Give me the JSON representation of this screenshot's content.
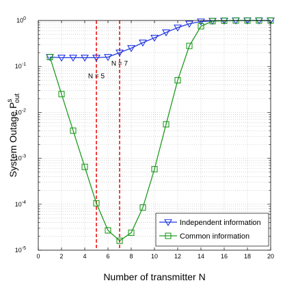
{
  "chart_data": {
    "type": "line",
    "xlabel": "Number of transmitter N",
    "ylabel": "System Outage P",
    "ylabel_sup": "s",
    "ylabel_sub": "out",
    "xlim": [
      0,
      20
    ],
    "ylim": [
      1e-05,
      1
    ],
    "yscale": "log",
    "grid": true,
    "legend_position": "bottom-right",
    "x_ticks": [
      "0",
      "2",
      "4",
      "6",
      "8",
      "10",
      "12",
      "14",
      "16",
      "18",
      "20"
    ],
    "y_ticks": [
      {
        "base": "10",
        "exp": "0"
      },
      {
        "base": "10",
        "exp": "-1"
      },
      {
        "base": "10",
        "exp": "-2"
      },
      {
        "base": "10",
        "exp": "-3"
      },
      {
        "base": "10",
        "exp": "-4"
      },
      {
        "base": "10",
        "exp": "-5"
      }
    ],
    "series": [
      {
        "name": "Independent information",
        "color": "#1f35e0",
        "marker": "triangle-down",
        "x": [
          1,
          2,
          3,
          4,
          5,
          6,
          7,
          8,
          9,
          10,
          11,
          12,
          13,
          14,
          15,
          16,
          17,
          18,
          19,
          20
        ],
        "y": [
          0.16,
          0.155,
          0.155,
          0.155,
          0.155,
          0.16,
          0.2,
          0.25,
          0.33,
          0.42,
          0.55,
          0.7,
          0.85,
          0.95,
          0.98,
          0.99,
          1,
          1,
          1,
          1
        ]
      },
      {
        "name": "Common information",
        "color": "#1e9a1e",
        "marker": "square",
        "x": [
          1,
          2,
          3,
          4,
          5,
          6,
          7,
          8,
          9,
          10,
          11,
          12,
          13,
          14,
          15,
          16,
          17,
          18,
          19,
          20
        ],
        "y": [
          0.16,
          0.025,
          0.004,
          0.00065,
          0.000105,
          2.7e-05,
          1.6e-05,
          2.4e-05,
          8.5e-05,
          0.00058,
          0.0055,
          0.05,
          0.28,
          0.75,
          0.97,
          0.99,
          1,
          1,
          1,
          1
        ]
      }
    ],
    "vlines": [
      {
        "x": 5,
        "label": "N = 5",
        "label_y": 0.055,
        "color": "#ee1111"
      },
      {
        "x": 7,
        "label": "N = 7",
        "label_y": 0.105,
        "color": "#ee1111"
      }
    ]
  }
}
